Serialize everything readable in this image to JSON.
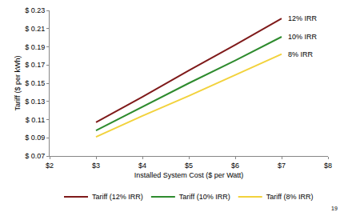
{
  "chart_data": {
    "type": "line",
    "x_label": "Installed System Cost ($ per Watt)",
    "y_label": "Tariff ($ per kWh)",
    "x": [
      3,
      4,
      5,
      6,
      7
    ],
    "series": [
      {
        "name": "Tariff (12% IRR)",
        "label": "12% IRR",
        "color": "#7f1a1a",
        "values": [
          0.107,
          0.135,
          0.164,
          0.192,
          0.221
        ]
      },
      {
        "name": "Tariff (10% IRR)",
        "label": "10% IRR",
        "color": "#2e8b2e",
        "values": [
          0.098,
          0.124,
          0.15,
          0.175,
          0.201
        ]
      },
      {
        "name": "Tariff (8% IRR)",
        "label": "8% IRR",
        "color": "#f2d23c",
        "values": [
          0.091,
          0.114,
          0.136,
          0.159,
          0.182
        ]
      }
    ],
    "xlim": [
      2,
      8
    ],
    "xticks": [
      {
        "value": 2,
        "label": "$2"
      },
      {
        "value": 3,
        "label": "$3"
      },
      {
        "value": 4,
        "label": "$4"
      },
      {
        "value": 5,
        "label": "$5"
      },
      {
        "value": 6,
        "label": "$6"
      },
      {
        "value": 7,
        "label": "$7"
      },
      {
        "value": 8,
        "label": "$8"
      }
    ],
    "ylim": [
      0.07,
      0.23
    ],
    "yticks": [
      {
        "value": 0.07,
        "label": "$ 0.07"
      },
      {
        "value": 0.09,
        "label": "$ 0.09"
      },
      {
        "value": 0.11,
        "label": "$ 0.11"
      },
      {
        "value": 0.13,
        "label": "$ 0.13"
      },
      {
        "value": 0.15,
        "label": "$ 0.15"
      },
      {
        "value": 0.17,
        "label": "$ 0.17"
      },
      {
        "value": 0.19,
        "label": "$ 0.19"
      },
      {
        "value": 0.21,
        "label": "$ 0.21"
      },
      {
        "value": 0.23,
        "label": "$ 0.23"
      }
    ],
    "grid": false,
    "legend": "bottom",
    "line_style": "solid",
    "footer": "19"
  }
}
